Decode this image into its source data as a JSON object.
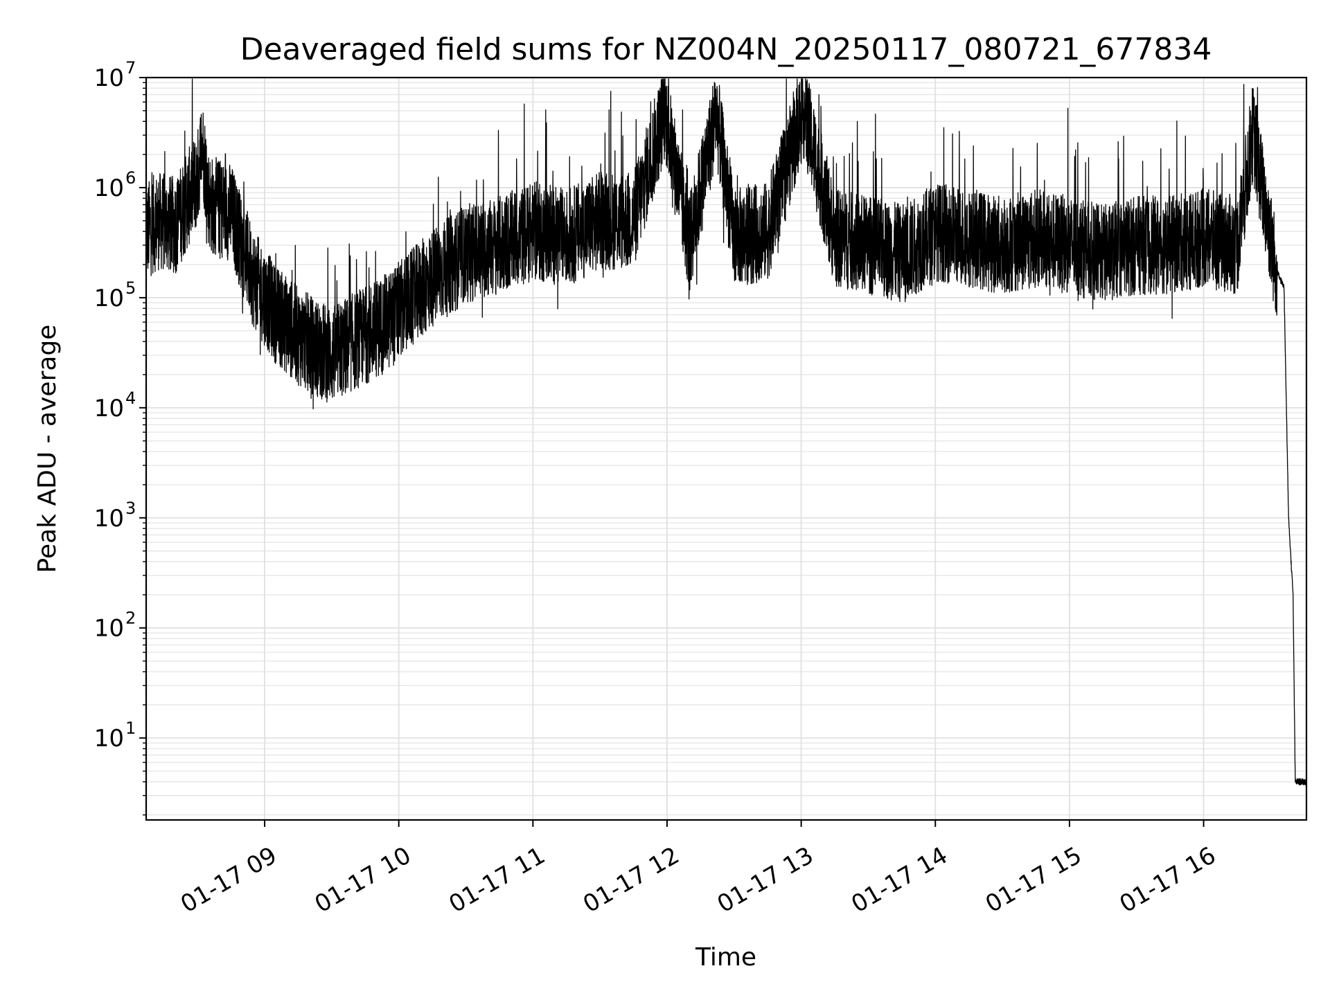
{
  "chart_data": {
    "type": "line",
    "title": "Deaveraged field sums for NZ004N_20250117_080721_677834",
    "xlabel": "Time",
    "ylabel": "Peak ADU - average",
    "yscale": "log",
    "ylim": [
      1.8,
      10000000
    ],
    "xlim": [
      "2025-01-17 08:07",
      "2025-01-17 16:46"
    ],
    "grid": true,
    "x_ticks": [
      {
        "x": "2025-01-17 09:00",
        "label": "01-17 09"
      },
      {
        "x": "2025-01-17 10:00",
        "label": "01-17 10"
      },
      {
        "x": "2025-01-17 11:00",
        "label": "01-17 11"
      },
      {
        "x": "2025-01-17 12:00",
        "label": "01-17 12"
      },
      {
        "x": "2025-01-17 13:00",
        "label": "01-17 13"
      },
      {
        "x": "2025-01-17 14:00",
        "label": "01-17 14"
      },
      {
        "x": "2025-01-17 15:00",
        "label": "01-17 15"
      },
      {
        "x": "2025-01-17 16:00",
        "label": "01-17 16"
      }
    ],
    "y_ticks": [
      {
        "value": 10,
        "base": "10",
        "exp": "1"
      },
      {
        "value": 100,
        "base": "10",
        "exp": "2"
      },
      {
        "value": 1000,
        "base": "10",
        "exp": "3"
      },
      {
        "value": 10000,
        "base": "10",
        "exp": "4"
      },
      {
        "value": 100000,
        "base": "10",
        "exp": "5"
      },
      {
        "value": 1000000,
        "base": "10",
        "exp": "6"
      },
      {
        "value": 10000000,
        "base": "10",
        "exp": "7"
      }
    ],
    "series": [
      {
        "line_color": "#000000",
        "x": [
          "2025-01-17 08:07",
          "2025-01-17 08:12",
          "2025-01-17 08:20",
          "2025-01-17 08:30",
          "2025-01-17 08:32",
          "2025-01-17 08:35",
          "2025-01-17 08:36",
          "2025-01-17 08:45",
          "2025-01-17 08:55",
          "2025-01-17 09:05",
          "2025-01-17 09:15",
          "2025-01-17 09:23",
          "2025-01-17 09:30",
          "2025-01-17 09:40",
          "2025-01-17 09:55",
          "2025-01-17 10:15",
          "2025-01-17 10:30",
          "2025-01-17 10:45",
          "2025-01-17 11:00",
          "2025-01-17 11:15",
          "2025-01-17 11:30",
          "2025-01-17 11:45",
          "2025-01-17 11:59",
          "2025-01-17 12:10",
          "2025-01-17 12:22",
          "2025-01-17 12:30",
          "2025-01-17 12:45",
          "2025-01-17 13:01",
          "2025-01-17 13:15",
          "2025-01-17 13:30",
          "2025-01-17 13:46",
          "2025-01-17 14:00",
          "2025-01-17 14:15",
          "2025-01-17 14:30",
          "2025-01-17 14:45",
          "2025-01-17 15:00",
          "2025-01-17 15:15",
          "2025-01-17 15:30",
          "2025-01-17 15:45",
          "2025-01-17 16:00",
          "2025-01-17 16:15",
          "2025-01-17 16:22",
          "2025-01-17 16:27",
          "2025-01-17 16:32",
          "2025-01-17 16:36",
          "2025-01-17 16:38",
          "2025-01-17 16:40",
          "2025-01-17 16:41",
          "2025-01-17 16:42",
          "2025-01-17 16:46"
        ],
        "y": [
          400000,
          500000,
          450000,
          1200000,
          2600000,
          800000,
          700000,
          600000,
          150000,
          70000,
          45000,
          35000,
          30000,
          40000,
          60000,
          150000,
          250000,
          300000,
          400000,
          350000,
          500000,
          500000,
          5000000,
          300000,
          4800000,
          350000,
          400000,
          5200000,
          350000,
          300000,
          250000,
          400000,
          350000,
          300000,
          350000,
          300000,
          250000,
          300000,
          300000,
          350000,
          300000,
          3200000,
          800000,
          200000,
          120000,
          1000,
          200,
          4,
          4,
          4
        ]
      }
    ]
  }
}
